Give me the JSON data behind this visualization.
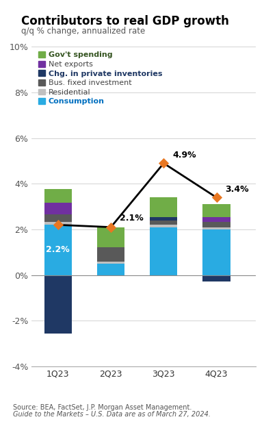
{
  "title": "Contributors to real GDP growth",
  "subtitle": "q/q % change, annualized rate",
  "categories": [
    "1Q23",
    "2Q23",
    "3Q23",
    "4Q23"
  ],
  "positive_components": [
    {
      "name": "Consumption",
      "values": [
        2.2,
        0.5,
        2.1,
        2.0
      ],
      "color": "#29ABE2"
    },
    {
      "name": "Residential",
      "values": [
        0.12,
        0.08,
        0.12,
        0.1
      ],
      "color": "#C0C0C0"
    },
    {
      "name": "Bus. fixed investment",
      "values": [
        0.35,
        0.65,
        0.18,
        0.22
      ],
      "color": "#595959"
    },
    {
      "name": "Chg. in private inventories",
      "values": [
        0.0,
        0.0,
        0.15,
        0.0
      ],
      "color": "#1F3864"
    },
    {
      "name": "Net exports",
      "values": [
        0.5,
        0.0,
        0.0,
        0.22
      ],
      "color": "#7030A0"
    },
    {
      "name": "Gov't spending",
      "values": [
        0.6,
        0.87,
        0.85,
        0.56
      ],
      "color": "#70AD47"
    }
  ],
  "negative_components": [
    {
      "name": "Chg. in private inventories",
      "values": [
        -2.55,
        0.0,
        0.0,
        -0.28
      ],
      "color": "#1F3864"
    }
  ],
  "gdp_line": [
    2.2,
    2.1,
    4.9,
    3.4
  ],
  "gdp_labels": [
    "2.2%",
    "2.1%",
    "4.9%",
    "3.4%"
  ],
  "ylim": [
    -4,
    10
  ],
  "yticks": [
    -4,
    -2,
    0,
    2,
    4,
    6,
    8,
    10
  ],
  "legend_items": [
    {
      "label": "Gov't spending",
      "color": "#70AD47",
      "bold": true,
      "text_color": "#375623"
    },
    {
      "label": "Net exports",
      "color": "#7030A0",
      "bold": false,
      "text_color": "#444444"
    },
    {
      "label": "Chg. in private inventories",
      "color": "#1F3864",
      "bold": true,
      "text_color": "#1F3864"
    },
    {
      "label": "Bus. fixed investment",
      "color": "#595959",
      "bold": false,
      "text_color": "#444444"
    },
    {
      "label": "Residential",
      "color": "#C0C0C0",
      "bold": false,
      "text_color": "#444444"
    },
    {
      "label": "Consumption",
      "color": "#29ABE2",
      "bold": true,
      "text_color": "#0070C0"
    }
  ],
  "source_text1": "Source: BEA, FactSet, J.P. Morgan Asset Management.",
  "source_text2": "Guide to the Markets – U.S. Data are as of March 27, 2024.",
  "background_color": "#FFFFFF",
  "grid_color": "#CCCCCC",
  "line_color": "#000000",
  "marker_color": "#E87722",
  "bar_width": 0.52
}
